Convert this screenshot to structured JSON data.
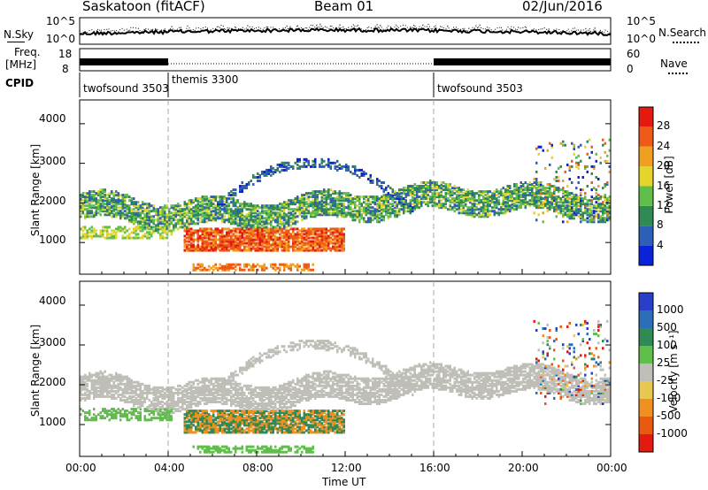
{
  "header": {
    "station": "Saskatoon (fitACF)",
    "beam": "Beam 01",
    "date": "02/Jun/2016"
  },
  "top_panels": {
    "nsky_label": "N.Sky",
    "nsearch_label": "N.Search",
    "noise_ticks_left": [
      "10^5",
      "10^0"
    ],
    "noise_ticks_right": [
      "10^5",
      "10^0"
    ],
    "freq_label_1": "Freq.",
    "freq_label_2": "[MHz]",
    "freq_ticks": [
      "18",
      "8"
    ],
    "nave_label": "Nave",
    "nave_ticks": [
      "60",
      "0"
    ],
    "cpid_label": "CPID",
    "cpid_segments": [
      {
        "name": "twofsound 3503",
        "start_h": 0,
        "end_h": 4
      },
      {
        "name": "themis 3300",
        "start_h": 4,
        "end_h": 16
      },
      {
        "name": "twofsound 3503",
        "start_h": 16,
        "end_h": 24
      }
    ]
  },
  "chart_data": [
    {
      "type": "heatmap",
      "name": "power",
      "ylabel": "Slant Range [km]",
      "ylim": [
        200,
        4600
      ],
      "yticks": [
        "1000",
        "2000",
        "3000",
        "4000"
      ],
      "xlim_hours": [
        0,
        24
      ],
      "colorbar_label": "Power [dB]",
      "colorbar_ticks": [
        "4",
        "8",
        "12",
        "16",
        "20",
        "24",
        "28"
      ],
      "colorbar_colors": [
        "#0a23d8",
        "#2c5fb8",
        "#2f8a55",
        "#5fbf4a",
        "#e5d42a",
        "#f0a020",
        "#ee5a18",
        "#e21a10"
      ],
      "features": [
        {
          "desc": "high-power band",
          "start_h": 4.6,
          "end_h": 11.9,
          "range_km": [
            750,
            1350
          ],
          "level": 28
        },
        {
          "desc": "upper band",
          "start_h": 0,
          "end_h": 24,
          "range_km": [
            1500,
            2300
          ],
          "level": 14
        },
        {
          "desc": "near-range echoes",
          "start_h": 5,
          "end_h": 10.5,
          "range_km": [
            250,
            450
          ],
          "level": 26
        }
      ]
    },
    {
      "type": "heatmap",
      "name": "velocity",
      "ylabel": "Slant Range [km]",
      "ylim": [
        200,
        4600
      ],
      "yticks": [
        "1000",
        "2000",
        "3000",
        "4000"
      ],
      "xlim_hours": [
        0,
        24
      ],
      "xticks": [
        "00:00",
        "04:00",
        "08:00",
        "12:00",
        "16:00",
        "20:00",
        "00:00"
      ],
      "xlabel": "Time UT",
      "colorbar_label": "Velocity [m s⁻¹]",
      "colorbar_ticks": [
        "1000",
        "500",
        "100",
        "25",
        "-25",
        "-100",
        "-500",
        "-1000"
      ],
      "colorbar_colors": [
        "#2a3fc8",
        "#2c6fb8",
        "#2f8a55",
        "#5fbf4a",
        "#bfbfb8",
        "#e8c850",
        "#f09020",
        "#e85a10",
        "#e21a10"
      ]
    }
  ]
}
